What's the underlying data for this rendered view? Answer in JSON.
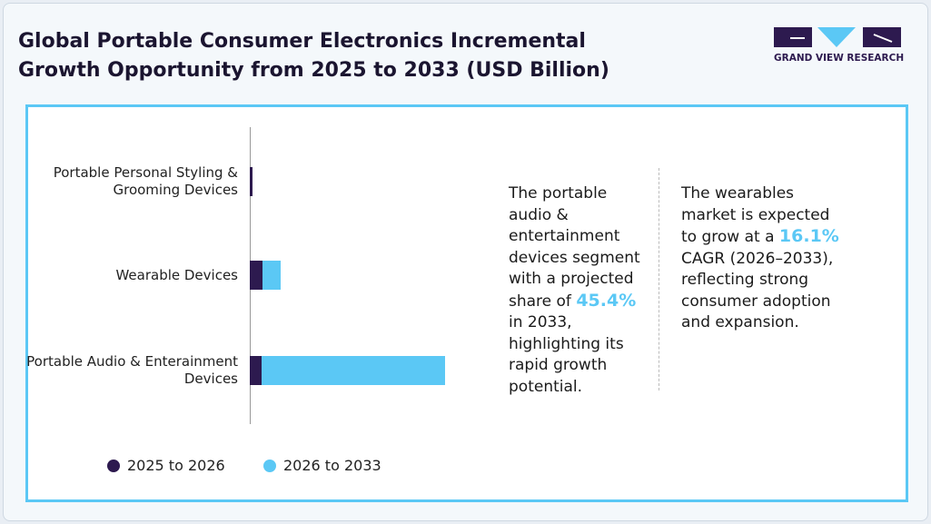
{
  "chart_data": {
    "type": "bar",
    "orientation": "horizontal",
    "stacked": true,
    "title": "Global Portable Consumer Electronics Incremental Growth Opportunity from 2025 to 2033 (USD Billion)",
    "categories": [
      "Portable Personal Styling & Grooming Devices",
      "Wearable Devices",
      "Portable Audio & Enterainment Devices"
    ],
    "series": [
      {
        "name": "2025 to 2026",
        "color": "#2d1a4f",
        "values": [
          0.7,
          3.2,
          3.0
        ]
      },
      {
        "name": "2026 to 2033",
        "color": "#5bc8f5",
        "values": [
          0,
          4.5,
          45.9
        ]
      }
    ],
    "xlim": [
      0,
      100
    ],
    "legend": "bottom"
  },
  "logo": {
    "text": "GRAND VIEW RESEARCH"
  },
  "callouts": [
    {
      "before": "The portable audio & entertainment devices segment with a projected share of",
      "highlight": "45.4%",
      "after": "in 2033, highlighting its rapid growth potential."
    },
    {
      "before": "The wearables market is expected to grow at a",
      "highlight": "16.1%",
      "after": "CAGR (2026–2033), reflecting strong consumer adoption and expansion."
    }
  ]
}
